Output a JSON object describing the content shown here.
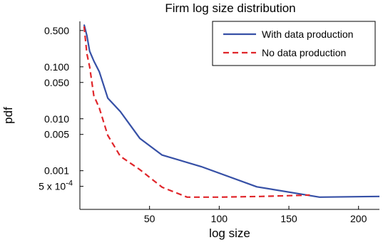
{
  "chart_data": {
    "type": "line",
    "title": "Firm log size distribution",
    "xlabel": "log size",
    "ylabel": "pdf",
    "yscale": "log",
    "xlim": [
      0,
      215
    ],
    "ylim": [
      0.00018,
      0.75
    ],
    "grid": false,
    "legend_position": "top-right",
    "x_ticks": [
      50,
      100,
      150,
      200
    ],
    "x_tick_labels": [
      "50",
      "100",
      "150",
      "200"
    ],
    "y_ticks": [
      0.5,
      0.1,
      0.05,
      0.01,
      0.005,
      0.001,
      0.0005
    ],
    "y_tick_labels": [
      "0.500",
      "0.100",
      "0.050",
      "0.010",
      "0.005",
      "0.001",
      "5 x 10"
    ],
    "y_tick_exponent": "-4",
    "series": [
      {
        "name": "With data production",
        "color": "#3650a6",
        "style": "solid",
        "x": [
          3,
          5,
          7,
          10,
          14,
          20,
          29,
          43,
          59,
          87,
          127,
          172,
          215
        ],
        "y": [
          0.65,
          0.4,
          0.2,
          0.13,
          0.08,
          0.025,
          0.0138,
          0.0042,
          0.002,
          0.0012,
          0.00049,
          0.00031,
          0.00032
        ]
      },
      {
        "name": "No data production",
        "color": "#e0262b",
        "style": "dashed",
        "x": [
          3,
          5,
          7,
          10,
          14,
          20,
          29,
          43,
          59,
          77,
          100,
          130,
          165
        ],
        "y": [
          0.6,
          0.18,
          0.1,
          0.028,
          0.016,
          0.0048,
          0.0019,
          0.00105,
          0.00048,
          0.00031,
          0.00031,
          0.00032,
          0.00034
        ]
      }
    ]
  }
}
